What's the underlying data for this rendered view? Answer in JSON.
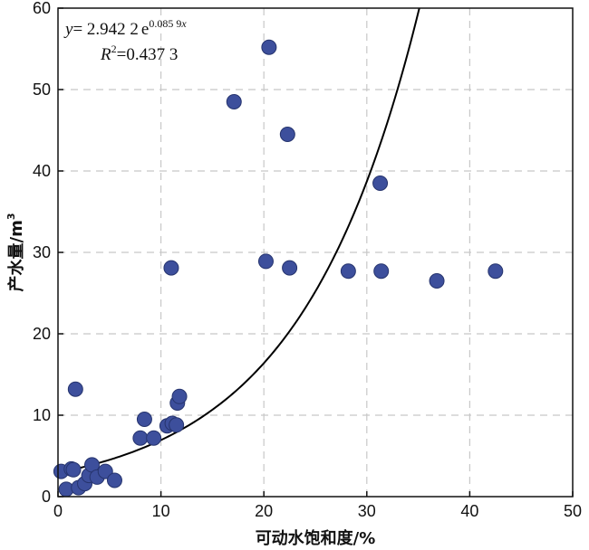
{
  "chart_data": {
    "type": "scatter",
    "xlabel": "可动水饱和度/%",
    "ylabel_main": "产水量/m",
    "ylabel_sup": "3",
    "xlim": [
      0,
      50
    ],
    "ylim": [
      0,
      60
    ],
    "x_ticks": [
      "0",
      "10",
      "20",
      "30",
      "40",
      "50"
    ],
    "y_ticks": [
      "0",
      "10",
      "20",
      "30",
      "40",
      "50",
      "60"
    ],
    "grid": true,
    "points": [
      {
        "x": 0.3,
        "y": 3.1
      },
      {
        "x": 0.8,
        "y": 0.9
      },
      {
        "x": 1.3,
        "y": 3.4
      },
      {
        "x": 1.5,
        "y": 3.3
      },
      {
        "x": 1.7,
        "y": 13.2
      },
      {
        "x": 2.0,
        "y": 1.1
      },
      {
        "x": 2.6,
        "y": 1.6
      },
      {
        "x": 3.0,
        "y": 2.6
      },
      {
        "x": 3.3,
        "y": 3.9
      },
      {
        "x": 3.8,
        "y": 2.4
      },
      {
        "x": 4.6,
        "y": 3.1
      },
      {
        "x": 5.5,
        "y": 2.0
      },
      {
        "x": 8.0,
        "y": 7.2
      },
      {
        "x": 8.4,
        "y": 9.5
      },
      {
        "x": 9.3,
        "y": 7.2
      },
      {
        "x": 10.6,
        "y": 8.7
      },
      {
        "x": 11.0,
        "y": 28.1
      },
      {
        "x": 11.1,
        "y": 9.0
      },
      {
        "x": 11.5,
        "y": 8.8
      },
      {
        "x": 11.6,
        "y": 11.5
      },
      {
        "x": 11.8,
        "y": 12.3
      },
      {
        "x": 17.1,
        "y": 48.5
      },
      {
        "x": 20.2,
        "y": 28.9
      },
      {
        "x": 20.5,
        "y": 55.2
      },
      {
        "x": 22.3,
        "y": 44.5
      },
      {
        "x": 22.5,
        "y": 28.1
      },
      {
        "x": 28.2,
        "y": 27.7
      },
      {
        "x": 31.3,
        "y": 38.5
      },
      {
        "x": 31.4,
        "y": 27.7
      },
      {
        "x": 36.8,
        "y": 26.5
      },
      {
        "x": 42.5,
        "y": 27.7
      }
    ],
    "fit": {
      "type": "exponential",
      "a": 2.9422,
      "b": 0.0859
    }
  },
  "equation": {
    "y_var": "y",
    "equals": "= 2.942 2",
    "e": "e",
    "exponent": "0.085 9",
    "exp_var": "x",
    "r_label": "R",
    "r_sup": "2",
    "r_value": "=0.437 3"
  }
}
